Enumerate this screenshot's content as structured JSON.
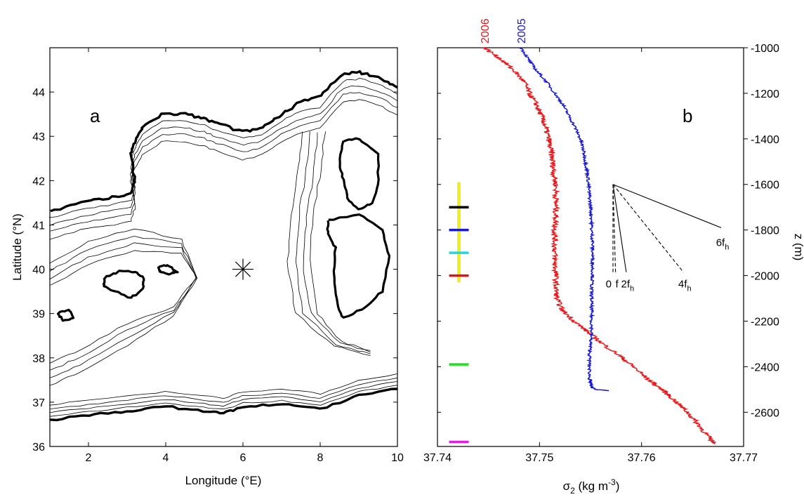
{
  "chart_data": [
    {
      "type": "map",
      "panel_label": "a",
      "xlabel": "Longitude (°E)",
      "ylabel": "Latitude (°N)",
      "xlim": [
        1,
        10
      ],
      "ylim": [
        36,
        45
      ],
      "xticks": [
        2,
        4,
        6,
        8,
        10
      ],
      "yticks": [
        36,
        37,
        38,
        39,
        40,
        41,
        42,
        43,
        44
      ],
      "station_marker": {
        "lon": 6.0,
        "lat": 40.0,
        "symbol": "asterisk"
      },
      "coastline": {
        "north_coast": [
          [
            1,
            41.3
          ],
          [
            1.8,
            41.5
          ],
          [
            2.5,
            41.6
          ],
          [
            3.1,
            41.7
          ],
          [
            3.2,
            42.0
          ],
          [
            3.1,
            42.6
          ],
          [
            3.2,
            42.9
          ],
          [
            3.4,
            43.2
          ],
          [
            3.9,
            43.5
          ],
          [
            4.5,
            43.5
          ],
          [
            5.0,
            43.4
          ],
          [
            5.3,
            43.3
          ],
          [
            6.0,
            43.1
          ],
          [
            6.5,
            43.2
          ],
          [
            7.0,
            43.5
          ],
          [
            7.5,
            43.8
          ],
          [
            8.0,
            43.9
          ],
          [
            8.6,
            44.4
          ],
          [
            9.0,
            44.45
          ],
          [
            9.6,
            44.3
          ],
          [
            10,
            44.1
          ]
        ],
        "south_coast": [
          [
            1,
            36.6
          ],
          [
            2,
            36.7
          ],
          [
            3,
            36.8
          ],
          [
            4,
            36.9
          ],
          [
            5,
            36.8
          ],
          [
            5.5,
            36.75
          ],
          [
            6,
            36.9
          ],
          [
            7,
            36.95
          ],
          [
            8,
            36.85
          ],
          [
            9,
            37.15
          ],
          [
            10,
            37.3
          ]
        ],
        "islands": [
          {
            "name_shown": "",
            "points": [
              [
                2.4,
                39.8
              ],
              [
                2.8,
                39.95
              ],
              [
                3.2,
                39.95
              ],
              [
                3.45,
                39.8
              ],
              [
                3.4,
                39.55
              ],
              [
                3.1,
                39.35
              ],
              [
                2.7,
                39.5
              ],
              [
                2.4,
                39.6
              ]
            ]
          },
          {
            "name_shown": "",
            "points": [
              [
                3.8,
                40.05
              ],
              [
                4.05,
                40.1
              ],
              [
                4.3,
                39.95
              ],
              [
                4.1,
                39.9
              ],
              [
                3.85,
                39.95
              ]
            ]
          },
          {
            "name_shown": "",
            "points": [
              [
                1.2,
                39.0
              ],
              [
                1.5,
                39.1
              ],
              [
                1.6,
                38.9
              ],
              [
                1.35,
                38.85
              ]
            ]
          },
          {
            "name_shown": "",
            "points": [
              [
                8.6,
                42.9
              ],
              [
                9.0,
                42.95
              ],
              [
                9.5,
                42.6
              ],
              [
                9.5,
                41.9
              ],
              [
                9.35,
                41.5
              ],
              [
                9.0,
                41.35
              ],
              [
                8.7,
                41.6
              ],
              [
                8.6,
                42.0
              ],
              [
                8.5,
                42.4
              ]
            ]
          },
          {
            "name_shown": "",
            "points": [
              [
                8.2,
                41.1
              ],
              [
                9.0,
                41.25
              ],
              [
                9.6,
                40.9
              ],
              [
                9.8,
                40.3
              ],
              [
                9.6,
                39.5
              ],
              [
                9.2,
                39.15
              ],
              [
                8.6,
                38.9
              ],
              [
                8.45,
                39.2
              ],
              [
                8.35,
                39.8
              ],
              [
                8.4,
                40.5
              ],
              [
                8.2,
                40.8
              ]
            ]
          }
        ]
      }
    },
    {
      "type": "line",
      "panel_label": "b",
      "xlabel": "σ2 (kg m-3)",
      "xlabel_main": "σ",
      "xlabel_sub": "2",
      "xlabel_rest": " (kg m",
      "xlabel_sup": "-3",
      "xlabel_close": ")",
      "ylabel": "z (m)",
      "xlim": [
        37.74,
        37.77
      ],
      "ylim": [
        -2750,
        -1000
      ],
      "xticks": [
        "37.74",
        "37.75",
        "37.76",
        "37.77"
      ],
      "xtick_values": [
        37.74,
        37.75,
        37.76,
        37.77
      ],
      "yticks": [
        -1000,
        -1200,
        -1400,
        -1600,
        -1800,
        -2000,
        -2200,
        -2400,
        -2600
      ],
      "series": [
        {
          "name": "2006",
          "color": "#e8191c",
          "z": [
            -1000,
            -1050,
            -1100,
            -1150,
            -1200,
            -1250,
            -1300,
            -1350,
            -1400,
            -1450,
            -1500,
            -1550,
            -1600,
            -1650,
            -1700,
            -1750,
            -1800,
            -1850,
            -1900,
            -1950,
            -2000,
            -2050,
            -2100,
            -2150,
            -2200,
            -2250,
            -2300,
            -2350,
            -2400,
            -2450,
            -2500,
            -2550,
            -2600,
            -2650,
            -2700,
            -2740
          ],
          "sigma2": [
            37.7446,
            37.7462,
            37.7475,
            37.7485,
            37.749,
            37.7497,
            37.7502,
            37.7506,
            37.7509,
            37.7511,
            37.7513,
            37.7514,
            37.7516,
            37.7516,
            37.7516,
            37.7516,
            37.7515,
            37.7515,
            37.7515,
            37.7515,
            37.7516,
            37.7516,
            37.7517,
            37.7522,
            37.7534,
            37.7548,
            37.7562,
            37.7578,
            37.7592,
            37.7605,
            37.762,
            37.7633,
            37.7645,
            37.7655,
            37.7664,
            37.7672
          ]
        },
        {
          "name": "2005",
          "color": "#1818d0",
          "z": [
            -1000,
            -1050,
            -1100,
            -1150,
            -1200,
            -1250,
            -1300,
            -1350,
            -1400,
            -1450,
            -1500,
            -1550,
            -1600,
            -1650,
            -1700,
            -1750,
            -1800,
            -1850,
            -1900,
            -1950,
            -2000,
            -2050,
            -2100,
            -2150,
            -2200,
            -2250,
            -2300,
            -2350,
            -2400,
            -2450,
            -2470,
            -2490,
            -2500,
            -2505
          ],
          "sigma2": [
            37.7482,
            37.7489,
            37.7497,
            37.7507,
            37.7515,
            37.7523,
            37.7529,
            37.7535,
            37.754,
            37.7543,
            37.7545,
            37.7547,
            37.7548,
            37.7549,
            37.755,
            37.7551,
            37.7551,
            37.7552,
            37.7552,
            37.7552,
            37.7552,
            37.7551,
            37.7551,
            37.7551,
            37.7551,
            37.7551,
            37.755,
            37.7549,
            37.7549,
            37.7549,
            37.755,
            37.7551,
            37.7555,
            37.7568
          ]
        }
      ],
      "depth_bar": {
        "sigma2": 37.7421,
        "z_top": -1590,
        "z_bottom": -2030,
        "color": "#f0f020"
      },
      "depth_marks": [
        {
          "z": -1700,
          "color": "#000000"
        },
        {
          "z": -1800,
          "color": "#1818d0"
        },
        {
          "z": -1900,
          "color": "#20d8e0"
        },
        {
          "z": -2000,
          "color": "#d81818"
        },
        {
          "z": -2390,
          "color": "#20e020"
        },
        {
          "z": -2730,
          "color": "#e020e0"
        }
      ],
      "fan": {
        "origin": {
          "sigma2": 37.7572,
          "z": -1600
        },
        "lines": [
          {
            "label": "0",
            "end_sigma2": 37.7572,
            "end_z": -1985,
            "style": "dashed",
            "anchor": "end"
          },
          {
            "label": "f",
            "end_sigma2": 37.75745,
            "end_z": -1985,
            "style": "dashed",
            "anchor": "start"
          },
          {
            "label": "2f",
            "sub": "h",
            "end_sigma2": 37.7585,
            "end_z": -1985,
            "style": "solid",
            "anchor": "start"
          },
          {
            "label": "4f",
            "sub": "h",
            "end_sigma2": 37.7641,
            "end_z": -1985,
            "style": "dashed",
            "anchor": "start"
          },
          {
            "label": "6f",
            "sub": "h",
            "end_sigma2": 37.7678,
            "end_z": -1790,
            "style": "solid",
            "anchor": "start"
          }
        ]
      }
    }
  ]
}
